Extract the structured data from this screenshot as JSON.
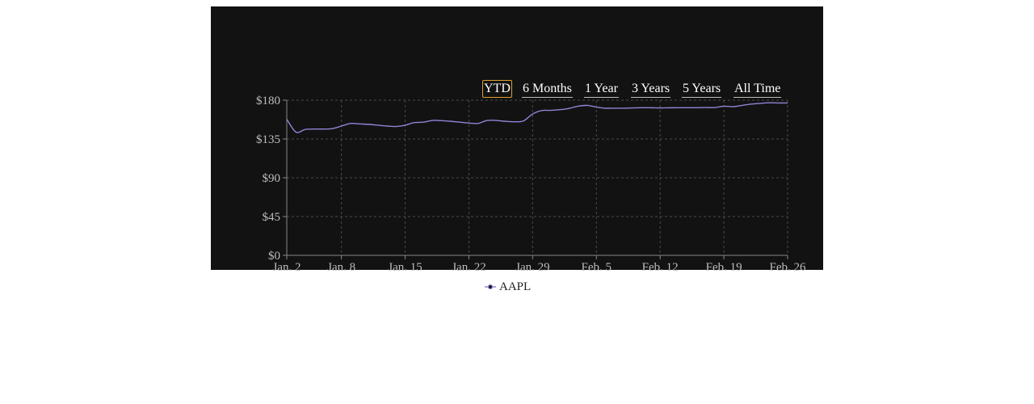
{
  "range_buttons": [
    {
      "label": "YTD",
      "active": true
    },
    {
      "label": "6 Months",
      "active": false
    },
    {
      "label": "1 Year",
      "active": false
    },
    {
      "label": "3 Years",
      "active": false
    },
    {
      "label": "5 Years",
      "active": false
    },
    {
      "label": "All Time",
      "active": false
    }
  ],
  "chart_data": {
    "type": "line",
    "title": "",
    "xlabel": "",
    "ylabel": "",
    "y_ticks": [
      "$0",
      "$45",
      "$90",
      "$135",
      "$180"
    ],
    "y_tick_values": [
      0,
      45,
      90,
      135,
      180
    ],
    "ylim": [
      0,
      180
    ],
    "x_ticks": [
      "Jan. 2",
      "Jan. 8",
      "Jan. 15",
      "Jan. 22",
      "Jan. 29",
      "Feb. 5",
      "Feb. 12",
      "Feb. 19",
      "Feb. 26"
    ],
    "x_tick_dates": [
      "2023-01-02",
      "2023-01-08",
      "2023-01-15",
      "2023-01-22",
      "2023-01-29",
      "2023-02-05",
      "2023-02-12",
      "2023-02-19",
      "2023-02-26"
    ],
    "xlim": [
      "2023-01-02",
      "2023-02-26"
    ],
    "grid": true,
    "legend_position": "bottom-center",
    "series": [
      {
        "name": "AAPL",
        "color": "#8f85d6",
        "x": [
          "2023-01-02",
          "2023-01-03",
          "2023-01-04",
          "2023-01-05",
          "2023-01-06",
          "2023-01-07",
          "2023-01-08",
          "2023-01-09",
          "2023-01-10",
          "2023-01-11",
          "2023-01-12",
          "2023-01-13",
          "2023-01-14",
          "2023-01-15",
          "2023-01-16",
          "2023-01-17",
          "2023-01-18",
          "2023-01-19",
          "2023-01-20",
          "2023-01-21",
          "2023-01-22",
          "2023-01-23",
          "2023-01-24",
          "2023-01-25",
          "2023-01-26",
          "2023-01-27",
          "2023-01-28",
          "2023-01-29",
          "2023-01-30",
          "2023-01-31",
          "2023-02-01",
          "2023-02-02",
          "2023-02-03",
          "2023-02-04",
          "2023-02-05",
          "2023-02-06",
          "2023-02-07",
          "2023-02-08",
          "2023-02-09",
          "2023-02-10",
          "2023-02-11",
          "2023-02-12",
          "2023-02-13",
          "2023-02-14",
          "2023-02-15",
          "2023-02-16",
          "2023-02-17",
          "2023-02-18",
          "2023-02-19",
          "2023-02-20",
          "2023-02-21",
          "2023-02-22",
          "2023-02-23",
          "2023-02-24",
          "2023-02-25",
          "2023-02-26"
        ],
        "values": [
          158,
          143,
          146,
          146.5,
          146.5,
          147,
          150,
          153,
          152.5,
          152,
          151,
          150,
          149.5,
          151,
          154,
          154.5,
          156.5,
          156.3,
          155.5,
          154.5,
          153.5,
          153,
          156.5,
          156.5,
          155.5,
          155,
          156,
          164,
          168,
          168.2,
          169,
          170.5,
          173,
          174,
          172,
          170.7,
          170.7,
          170.7,
          171,
          171.3,
          171.2,
          171,
          171.2,
          171.3,
          171.3,
          171.3,
          171.5,
          171.5,
          173,
          172.5,
          174,
          175.5,
          176.3,
          177,
          176.8,
          176.8
        ]
      }
    ]
  }
}
